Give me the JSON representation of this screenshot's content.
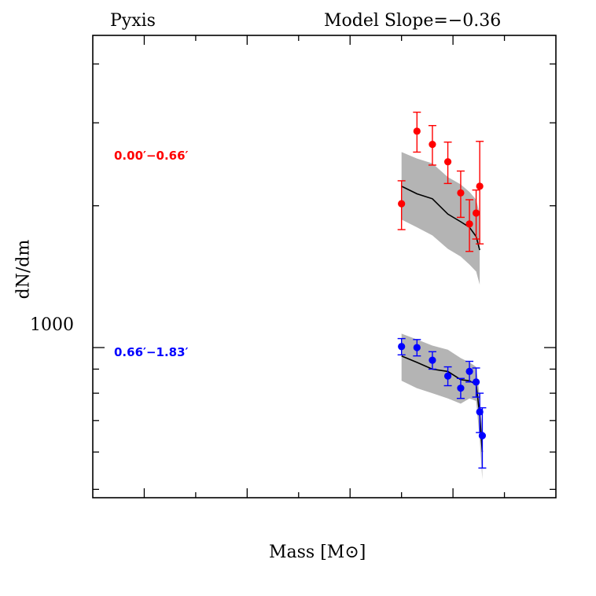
{
  "header": {
    "left": "Pyxis",
    "right": "Model  Slope=−0.36"
  },
  "chart_data": {
    "type": "scatter",
    "title": "",
    "xlabel": "Mass [M⊙]",
    "ylabel": "dN/dm",
    "xscale": "linear",
    "yscale": "log",
    "xlim": [
      0.1,
      1.0
    ],
    "ylim": [
      480,
      4600
    ],
    "y_tick_labels": [
      "1000"
    ],
    "grid": false,
    "legend": "none",
    "series": [
      {
        "name": "0.00′−0.66′",
        "color": "#ff0000",
        "points": [
          {
            "x": 0.7,
            "y": 2020,
            "err": 240
          },
          {
            "x": 0.73,
            "y": 2880,
            "err": 280
          },
          {
            "x": 0.76,
            "y": 2700,
            "err": 260
          },
          {
            "x": 0.79,
            "y": 2480,
            "err": 250
          },
          {
            "x": 0.815,
            "y": 2130,
            "err": 240
          },
          {
            "x": 0.832,
            "y": 1830,
            "err": 230
          },
          {
            "x": 0.845,
            "y": 1930,
            "err": 230
          },
          {
            "x": 0.852,
            "y": 2200,
            "err": 540
          }
        ],
        "model": {
          "x": [
            0.7,
            0.73,
            0.76,
            0.79,
            0.815,
            0.832,
            0.845,
            0.852
          ],
          "y": [
            2200,
            2120,
            2070,
            1920,
            1850,
            1800,
            1720,
            1610
          ],
          "band_lower": [
            1870,
            1800,
            1730,
            1620,
            1560,
            1500,
            1450,
            1360
          ],
          "band_upper": [
            2600,
            2520,
            2460,
            2300,
            2220,
            2140,
            2060,
            1920
          ]
        }
      },
      {
        "name": "0.66′−1.83′",
        "color": "#0000ff",
        "points": [
          {
            "x": 0.7,
            "y": 1005,
            "err": 40
          },
          {
            "x": 0.73,
            "y": 1000,
            "err": 40
          },
          {
            "x": 0.76,
            "y": 940,
            "err": 40
          },
          {
            "x": 0.79,
            "y": 870,
            "err": 40
          },
          {
            "x": 0.815,
            "y": 820,
            "err": 40
          },
          {
            "x": 0.832,
            "y": 890,
            "err": 45
          },
          {
            "x": 0.845,
            "y": 845,
            "err": 60
          },
          {
            "x": 0.852,
            "y": 730,
            "err": 70
          },
          {
            "x": 0.857,
            "y": 650,
            "err": 95
          }
        ],
        "model": {
          "x": [
            0.7,
            0.73,
            0.76,
            0.79,
            0.815,
            0.832,
            0.845,
            0.852,
            0.857
          ],
          "y": [
            960,
            930,
            900,
            890,
            855,
            850,
            835,
            720,
            600
          ],
          "band_lower": [
            850,
            820,
            800,
            780,
            760,
            780,
            770,
            640,
            525
          ],
          "band_upper": [
            1070,
            1040,
            1010,
            990,
            950,
            930,
            910,
            790,
            660
          ]
        }
      }
    ]
  }
}
